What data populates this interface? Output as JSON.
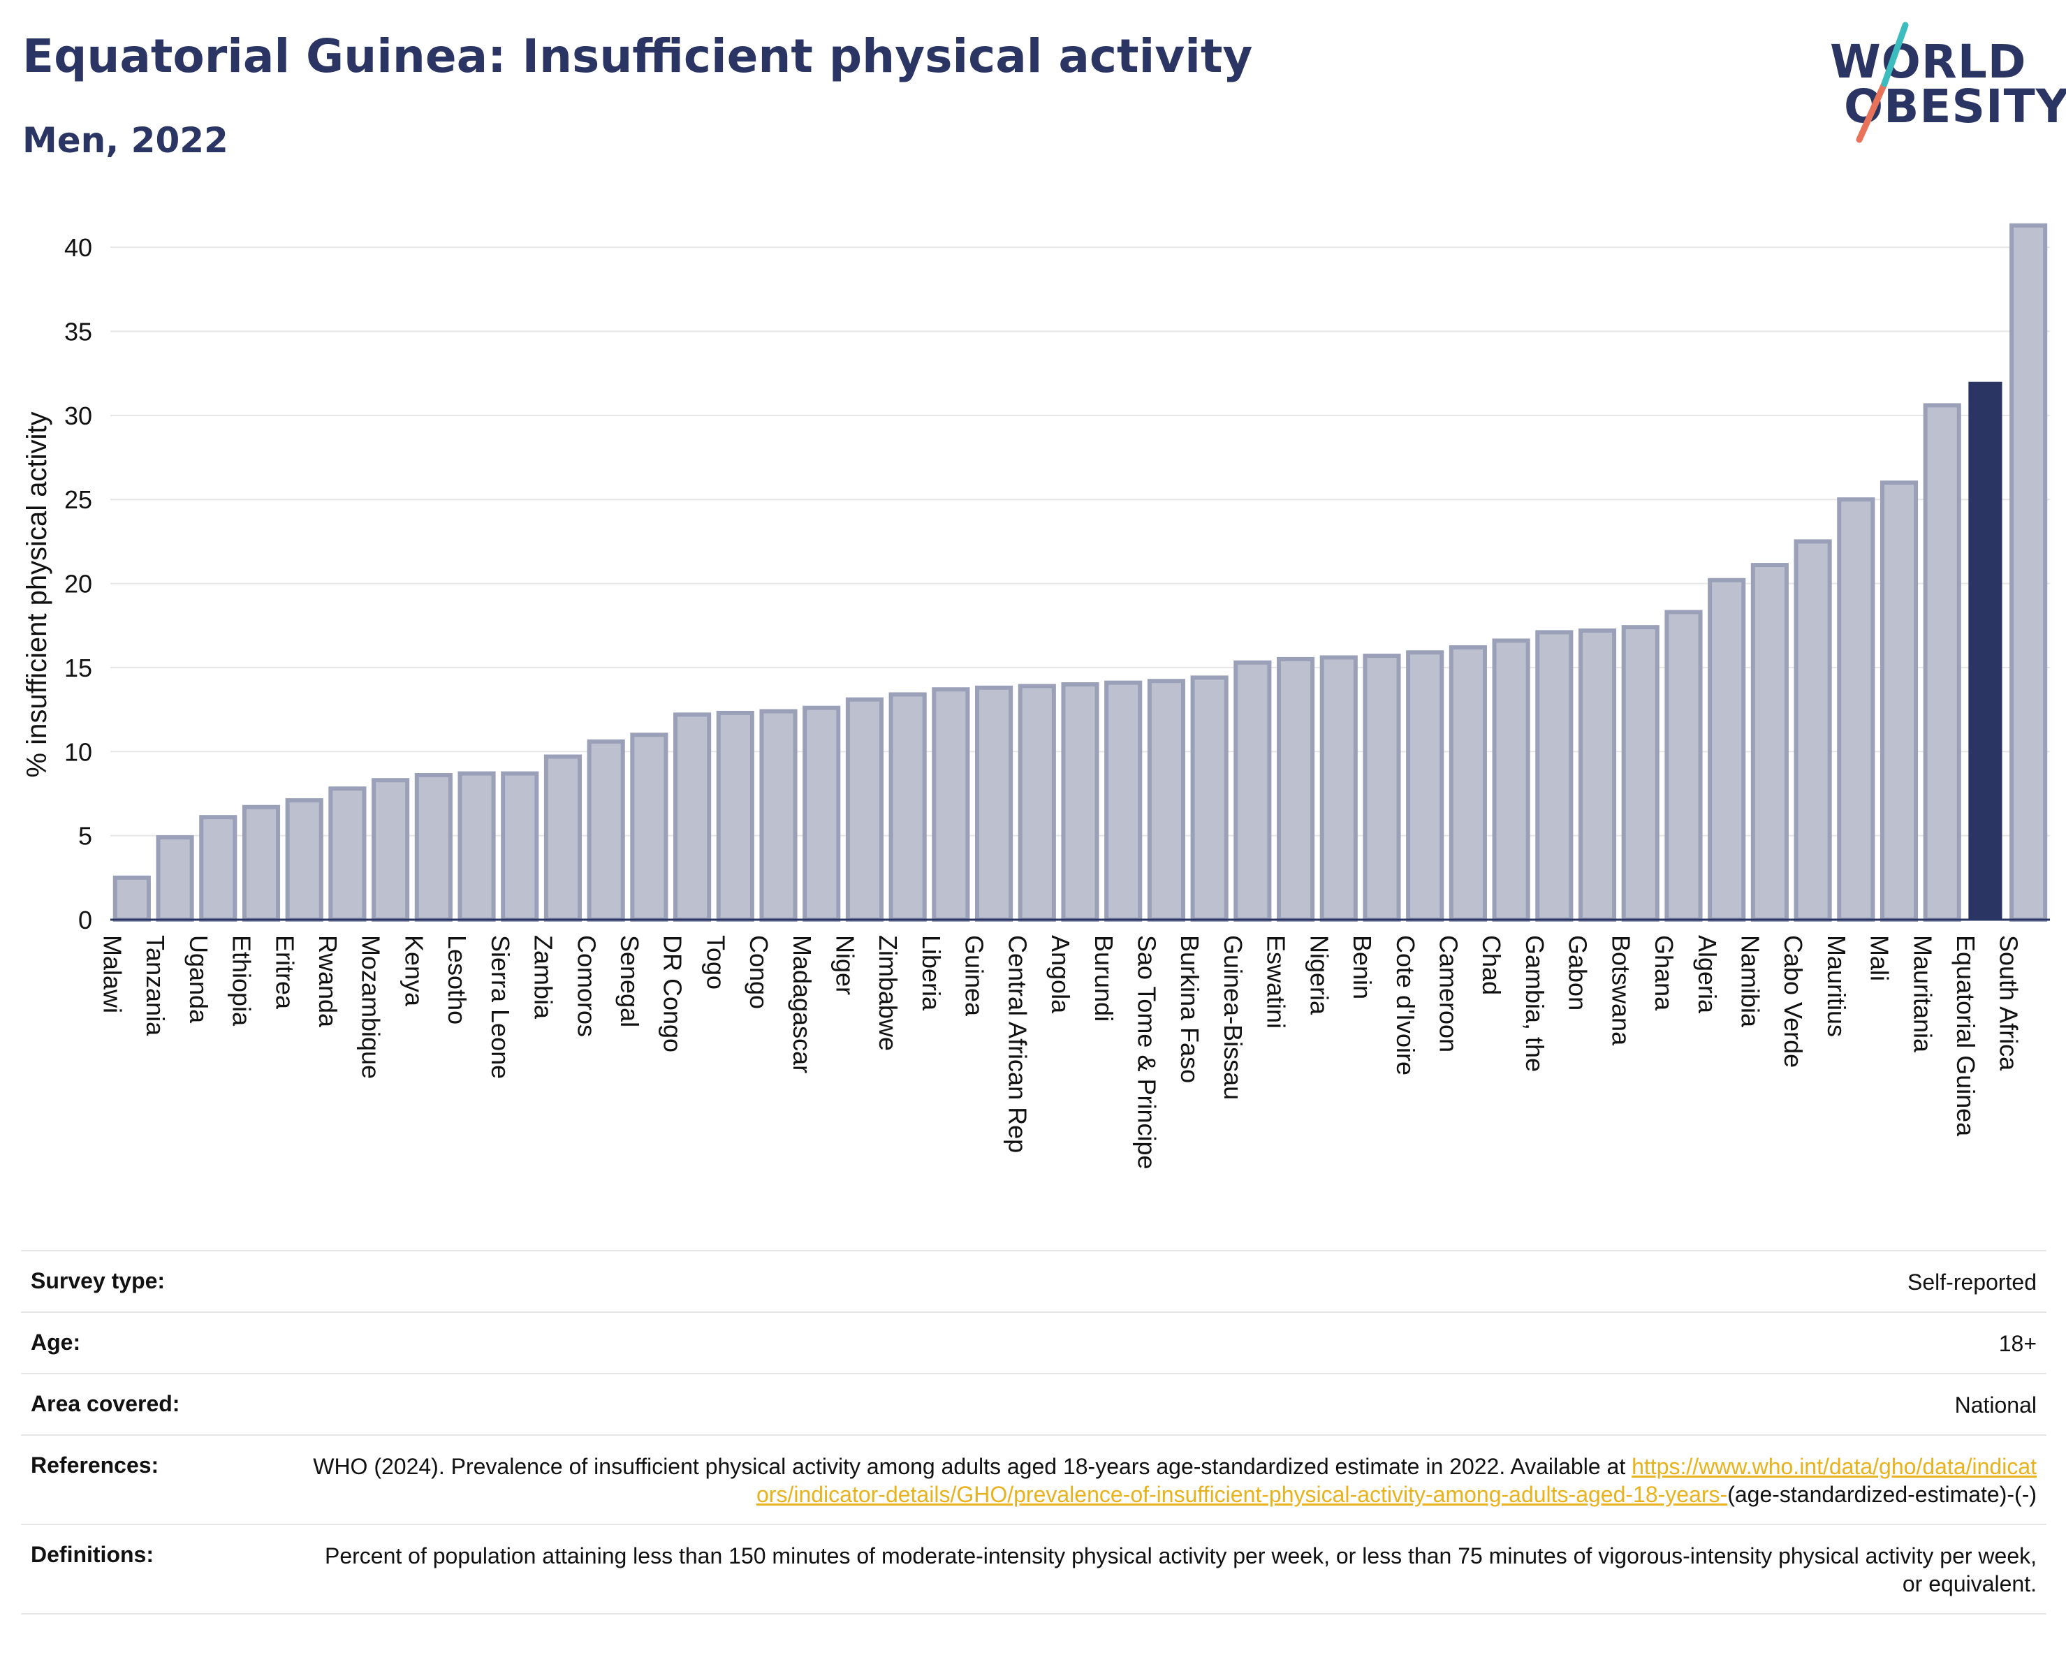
{
  "header": {
    "title": "Equatorial Guinea: Insufficient physical activity",
    "subtitle": "Men, 2022"
  },
  "logo": {
    "line1": "WORLD",
    "line2": "OBESITY"
  },
  "colors": {
    "bar": "#bcc0cf",
    "bar_border": "#9aa0b8",
    "highlight": "#2a3563",
    "title": "#2a3563",
    "link": "#e8b21d",
    "grid": "#e6e6e6"
  },
  "chart_data": {
    "type": "bar",
    "ylabel": "% insufficient physical activity",
    "ylim": [
      0,
      42
    ],
    "yticks": [
      0,
      5,
      10,
      15,
      20,
      25,
      30,
      35,
      40
    ],
    "grid": true,
    "highlight": "Equatorial Guinea",
    "categories": [
      "Malawi",
      "Tanzania",
      "Uganda",
      "Ethiopia",
      "Eritrea",
      "Rwanda",
      "Mozambique",
      "Kenya",
      "Lesotho",
      "Sierra Leone",
      "Zambia",
      "Comoros",
      "Senegal",
      "DR Congo",
      "Togo",
      "Congo",
      "Madagascar",
      "Niger",
      "Zimbabwe",
      "Liberia",
      "Guinea",
      "Central African Rep",
      "Angola",
      "Burundi",
      "Sao Tome & Principe",
      "Burkina Faso",
      "Guinea-Bissau",
      "Eswatini",
      "Nigeria",
      "Benin",
      "Cote d'Ivoire",
      "Cameroon",
      "Chad",
      "Gambia, the",
      "Gabon",
      "Botswana",
      "Ghana",
      "Algeria",
      "Namibia",
      "Cabo Verde",
      "Mauritius",
      "Mali",
      "Mauritania",
      "Equatorial Guinea",
      "South Africa"
    ],
    "values": [
      2.5,
      4.9,
      6.1,
      6.7,
      7.1,
      7.8,
      8.3,
      8.6,
      8.7,
      8.7,
      9.7,
      10.6,
      11.0,
      12.2,
      12.3,
      12.4,
      12.6,
      13.1,
      13.4,
      13.7,
      13.8,
      13.9,
      14.0,
      14.1,
      14.2,
      14.4,
      15.3,
      15.5,
      15.6,
      15.7,
      15.9,
      16.2,
      16.6,
      17.1,
      17.2,
      17.4,
      18.3,
      20.2,
      21.1,
      22.5,
      25.0,
      26.0,
      30.6,
      32.0,
      41.3
    ]
  },
  "meta": {
    "survey_type_label": "Survey type:",
    "survey_type_value": "Self-reported",
    "age_label": "Age:",
    "age_value": "18+",
    "area_label": "Area covered:",
    "area_value": "National",
    "references_label": "References:",
    "references_text": "WHO (2024). Prevalence of insufficient physical activity among adults aged 18-years age-standardized estimate in 2022. Available at",
    "references_link": "https://www.who.int/data/gho/data/indicators/indicator-details/GHO/prevalence-of-insufficient-physical-activity-among-adults-aged-18-years-",
    "references_suffix": "(age-standardized-estimate)-(-)",
    "definitions_label": "Definitions:",
    "definitions_text": "Percent of population attaining less than 150 minutes of moderate-intensity physical activity per week, or less than 75 minutes of vigorous-intensity physical activity per week, or equivalent."
  }
}
